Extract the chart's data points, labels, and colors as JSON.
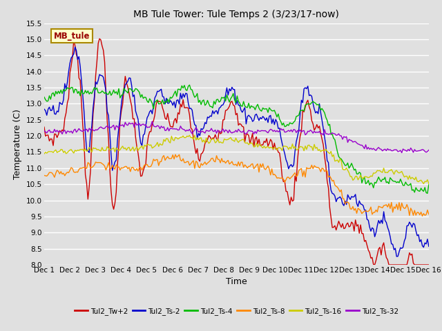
{
  "title": "MB Tule Tower: Tule Temps 2 (3/23/17-now)",
  "xlabel": "Time",
  "ylabel": "Temperature (C)",
  "ylim": [
    8.0,
    15.5
  ],
  "yticks": [
    8.0,
    8.5,
    9.0,
    9.5,
    10.0,
    10.5,
    11.0,
    11.5,
    12.0,
    12.5,
    13.0,
    13.5,
    14.0,
    14.5,
    15.0,
    15.5
  ],
  "xtick_labels": [
    "Dec 1",
    "Dec 2",
    "Dec 3",
    "Dec 4",
    "Dec 5",
    "Dec 6",
    "Dec 7",
    "Dec 8",
    "Dec 9",
    "Dec 10",
    "Dec 11",
    "Dec 12",
    "Dec 13",
    "Dec 14",
    "Dec 15",
    "Dec 16"
  ],
  "bg_color": "#e0e0e0",
  "plot_bg_color": "#e0e0e0",
  "grid_color": "#ffffff",
  "series_colors": [
    "#cc0000",
    "#0000cc",
    "#00bb00",
    "#ff8800",
    "#cccc00",
    "#9900cc"
  ],
  "series_names": [
    "Tul2_Tw+2",
    "Tul2_Ts-2",
    "Tul2_Ts-4",
    "Tul2_Ts-8",
    "Tul2_Ts-16",
    "Tul2_Ts-32"
  ],
  "watermark": "MB_tule",
  "watermark_bg": "#ffffcc",
  "watermark_border": "#aa8800"
}
